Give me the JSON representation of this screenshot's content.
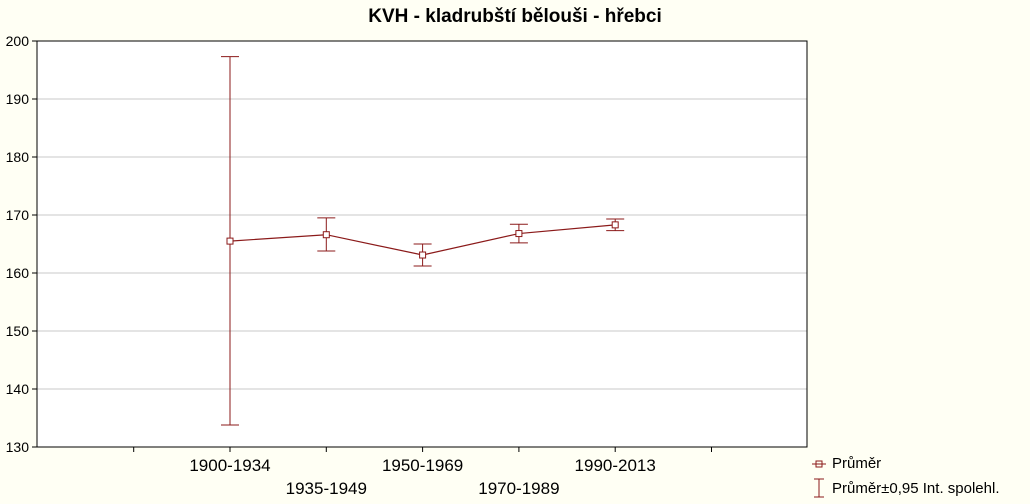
{
  "chart_data": {
    "type": "line",
    "title": "KVH - kladrubští bělouši - hřebci",
    "xlabel": "",
    "ylabel": "",
    "categories": [
      "1900-1934",
      "1935-1949",
      "1950-1969",
      "1970-1989",
      "1990-2013"
    ],
    "series": [
      {
        "name": "Průměr",
        "values": [
          165.5,
          166.6,
          163.1,
          166.8,
          168.3
        ],
        "ci_low": [
          133.8,
          163.8,
          161.2,
          165.2,
          167.3
        ],
        "ci_high": [
          197.3,
          169.5,
          165.0,
          168.4,
          169.3
        ]
      }
    ],
    "ylim": [
      130,
      200
    ],
    "yticks": [
      "130",
      "140",
      "150",
      "160",
      "170",
      "180",
      "190",
      "200"
    ],
    "grid": true,
    "legend_position": "bottom-right",
    "colors": {
      "line": "#8b1a1a",
      "grid": "#c8c8c8",
      "background": "#fffff4"
    }
  },
  "legend": {
    "mean_label": "Průměr",
    "ci_label": "Průměr±0,95 Int. spolehl."
  }
}
